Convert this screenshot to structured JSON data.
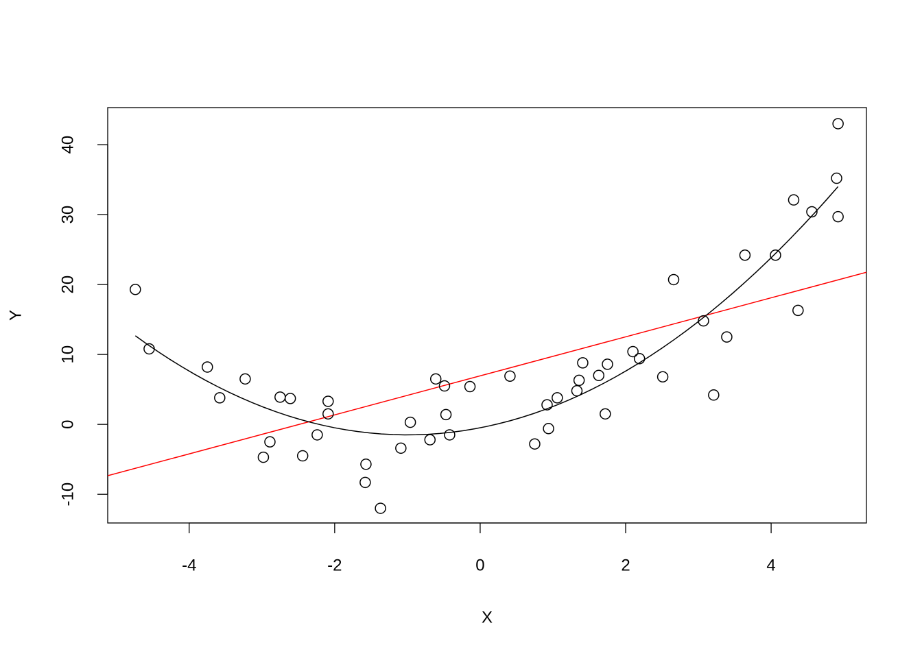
{
  "chart_data": {
    "type": "scatter",
    "x_label": "X",
    "y_label": "Y",
    "xlim": [
      -5.12,
      5.31
    ],
    "ylim": [
      -14.1,
      45.3
    ],
    "xticks": [
      -4,
      -2,
      0,
      2,
      4
    ],
    "yticks": [
      -10,
      0,
      10,
      20,
      30,
      40
    ],
    "series": [
      {
        "color": "#000000",
        "x": [
          -4.74,
          -4.55,
          -3.75,
          -3.58,
          -3.23,
          -2.98,
          -2.89,
          -2.75,
          -2.61,
          -2.44,
          -2.24,
          -2.09,
          -2.09,
          -1.58,
          -1.57,
          -1.37,
          -1.09,
          -0.96,
          -0.69,
          -0.61,
          -0.49,
          -0.47,
          -0.42,
          -0.14,
          0.41,
          0.75,
          0.92,
          0.94,
          1.06,
          1.33,
          1.36,
          1.41,
          1.63,
          1.72,
          1.75,
          2.1,
          2.19,
          2.51,
          2.66,
          3.07,
          3.21,
          3.39,
          3.64,
          4.06,
          4.31,
          4.37,
          4.56,
          4.9,
          4.92,
          4.92
        ],
        "values": [
          19.3,
          10.8,
          8.2,
          3.8,
          6.5,
          -4.7,
          -2.5,
          3.9,
          3.7,
          -4.5,
          -1.5,
          3.3,
          1.5,
          -8.3,
          -5.7,
          -12.0,
          -3.4,
          0.3,
          -2.2,
          6.5,
          5.5,
          1.4,
          -1.5,
          5.4,
          6.9,
          -2.8,
          2.8,
          -0.6,
          3.8,
          4.8,
          6.3,
          8.8,
          7.0,
          1.5,
          8.6,
          10.4,
          9.4,
          6.8,
          20.7,
          14.8,
          4.2,
          12.5,
          24.2,
          24.2,
          32.1,
          16.3,
          30.4,
          35.2,
          43.0,
          29.7
        ]
      }
    ],
    "regression_line": {
      "color": "#ff0000",
      "intercept": 6.94,
      "slope": 2.79
    },
    "fit_curve": {
      "color": "#000000",
      "coefficients": [
        -0.487,
        2.026,
        1.013
      ],
      "xrange": [
        -4.74,
        4.92
      ]
    }
  }
}
